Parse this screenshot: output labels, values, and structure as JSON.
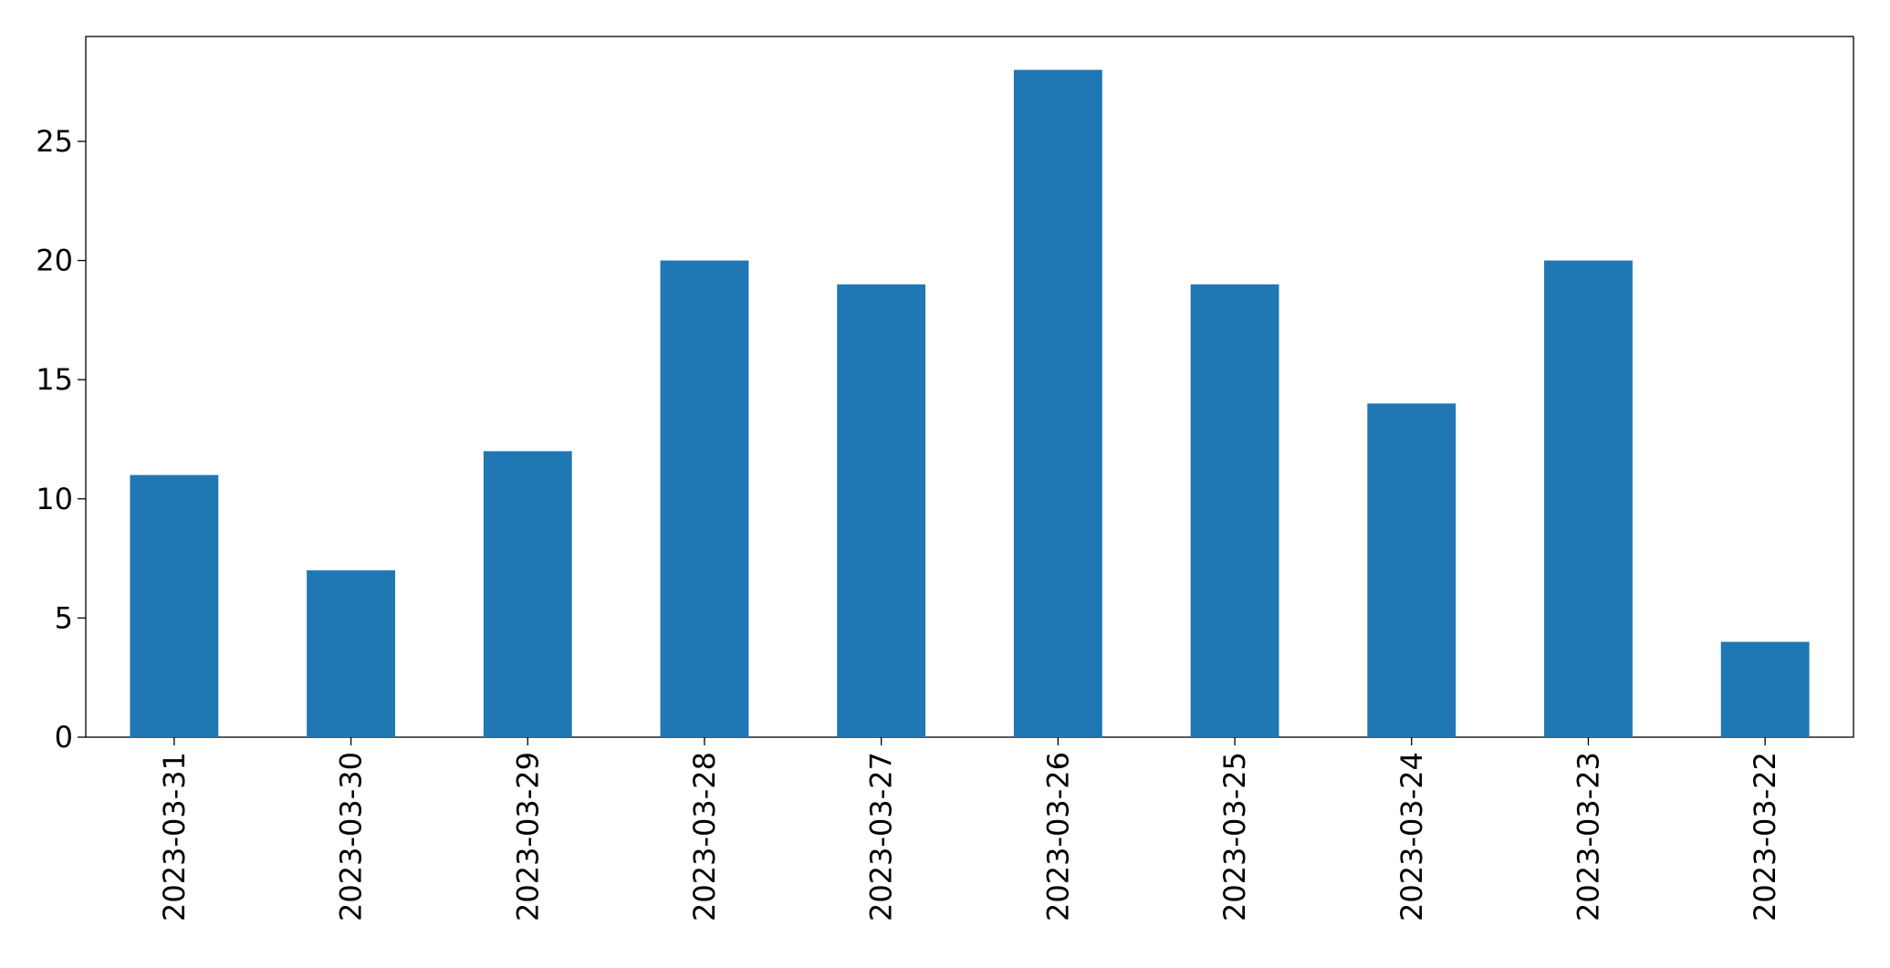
{
  "chart_data": {
    "type": "bar",
    "categories": [
      "2023-03-31",
      "2023-03-30",
      "2023-03-29",
      "2023-03-28",
      "2023-03-27",
      "2023-03-26",
      "2023-03-25",
      "2023-03-24",
      "2023-03-23",
      "2023-03-22"
    ],
    "values": [
      11,
      7,
      12,
      20,
      19,
      28,
      19,
      14,
      20,
      4
    ],
    "color": "#1f77b4",
    "ylim": [
      0,
      29.4
    ],
    "yticks": [
      0,
      5,
      10,
      15,
      20,
      25
    ],
    "grid": false
  }
}
